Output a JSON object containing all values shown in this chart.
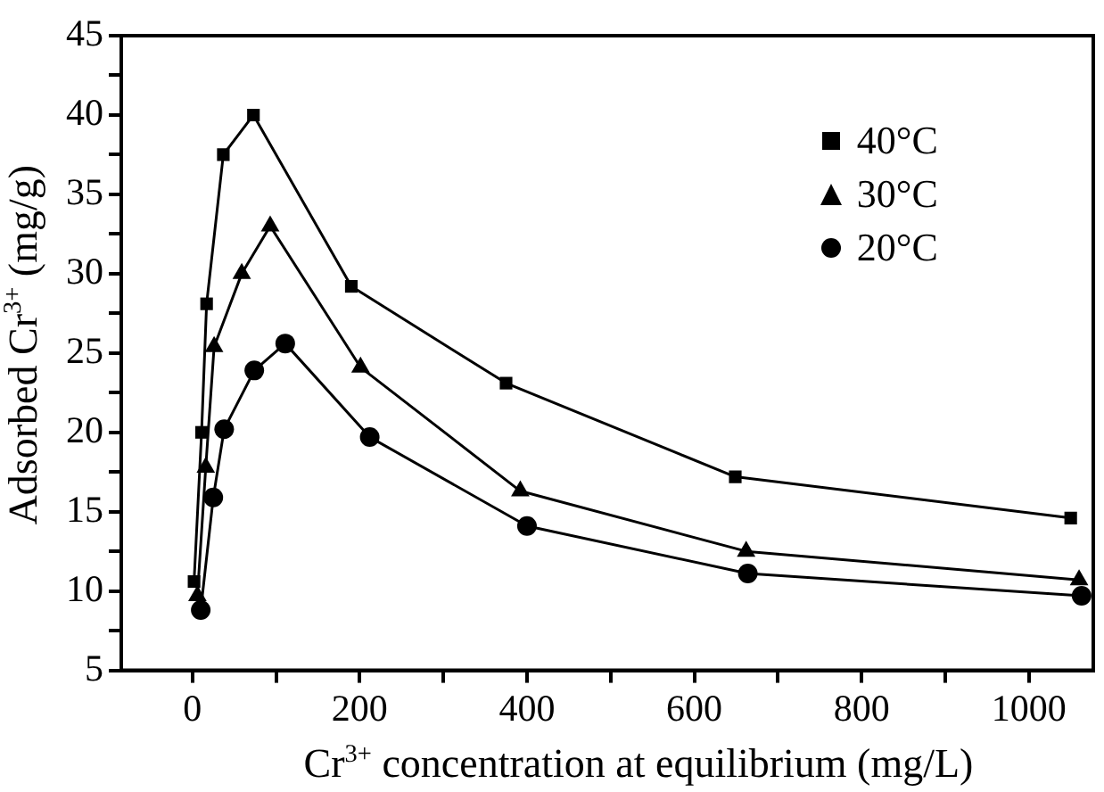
{
  "chart_data": {
    "type": "line",
    "xlabel": "Cr$^{3+}$ concentration at equilibrium (mg/L)",
    "ylabel": "Adsorbed Cr$^{3+}$ (mg/g)",
    "xlim": [
      -85,
      1077
    ],
    "xticks": [
      0,
      {
        "value": 100,
        "label": null
      },
      200,
      {
        "value": 300,
        "label": null
      },
      400,
      {
        "value": 500,
        "label": null
      },
      600,
      {
        "value": 700,
        "label": null
      },
      800,
      {
        "value": 900,
        "label": null
      },
      1000
    ],
    "ylim": [
      5,
      45
    ],
    "yticks": [
      5,
      {
        "value": 7.5,
        "label": null
      },
      10,
      {
        "value": 12.5,
        "label": null
      },
      15,
      {
        "value": 17.5,
        "label": null
      },
      20,
      {
        "value": 22.5,
        "label": null
      },
      25,
      {
        "value": 27.5,
        "label": null
      },
      30,
      {
        "value": 32.5,
        "label": null
      },
      35,
      {
        "value": 37.5,
        "label": null
      },
      40,
      {
        "value": 42.5,
        "label": null
      },
      45
    ],
    "grid": false,
    "legend": "top right",
    "series": [
      {
        "name": "40°C",
        "color": "#000000",
        "marker": "square",
        "x": [
          2,
          11,
          17,
          37,
          73,
          190,
          375,
          649,
          1050
        ],
        "values": [
          10.6,
          20.0,
          28.1,
          37.5,
          40.0,
          29.2,
          23.1,
          17.2,
          14.6
        ]
      },
      {
        "name": "30°C",
        "color": "#000000",
        "marker": "triangle",
        "x": [
          6,
          16,
          26,
          59,
          93,
          201,
          392,
          662,
          1060
        ],
        "values": [
          9.7,
          17.8,
          25.4,
          30.0,
          33.0,
          24.1,
          16.3,
          12.5,
          10.7
        ]
      },
      {
        "name": "20°C",
        "color": "#000000",
        "marker": "circle",
        "x": [
          10,
          25,
          38,
          74,
          111,
          212,
          400,
          664,
          1063
        ],
        "values": [
          8.8,
          15.9,
          20.2,
          23.9,
          25.6,
          19.7,
          14.1,
          11.1,
          9.7
        ]
      }
    ]
  }
}
